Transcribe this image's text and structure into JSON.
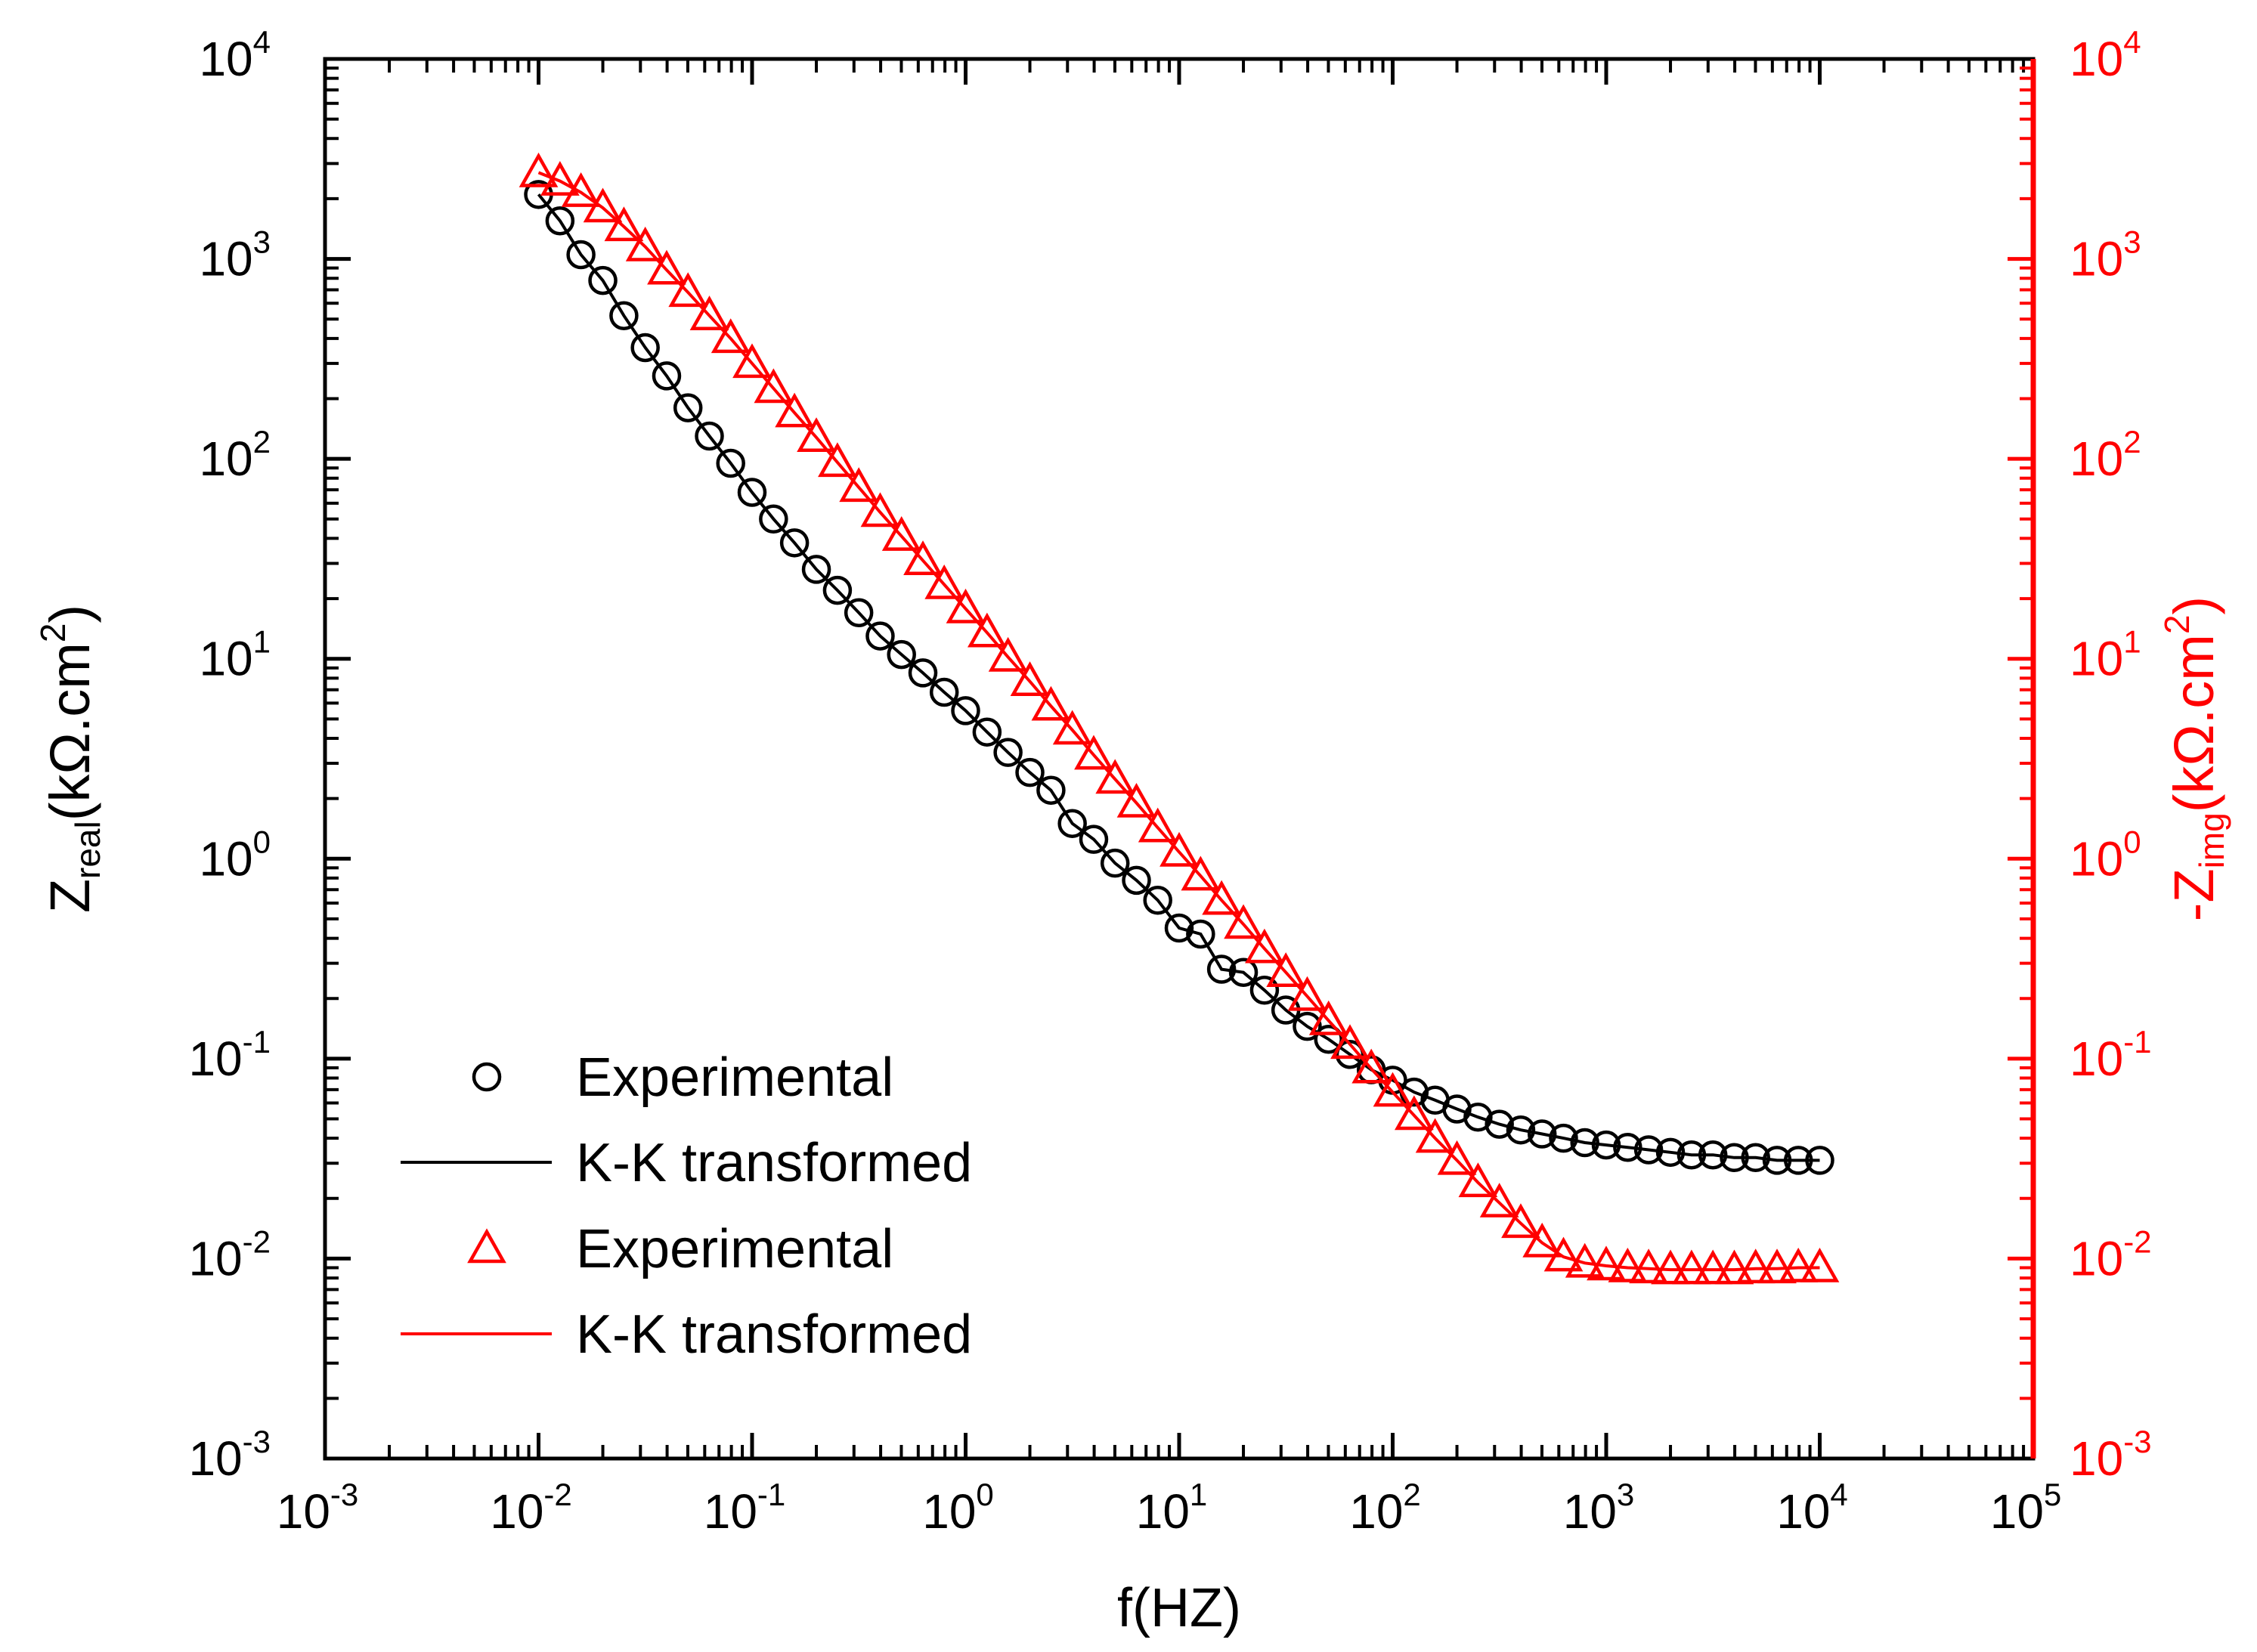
{
  "chart_data": {
    "type": "scatter",
    "x_scale": "log",
    "y_scale": "log",
    "xlim": [
      0.001,
      100000
    ],
    "ylim": [
      0.001,
      10000
    ],
    "y2lim": [
      0.001,
      10000
    ],
    "grid": false,
    "legend_position": "bottom-left",
    "x_tick_base": "10",
    "x_tick_exponents": [
      "-3",
      "-2",
      "-1",
      "0",
      "1",
      "2",
      "3",
      "4",
      "5"
    ],
    "y_tick_base": "10",
    "y_tick_exponents": [
      "-3",
      "-2",
      "-1",
      "0",
      "1",
      "2",
      "3",
      "4"
    ],
    "xlabel": "f(HZ)",
    "ylabel": {
      "main": "Z",
      "sub": "real",
      "unit": "(kΩ.cm",
      "sup": "2",
      "close": ")"
    },
    "y2label": {
      "main": "-Z",
      "sub": "img",
      "unit": "(kΩ.cm",
      "sup": "2",
      "close": ")"
    },
    "colors": {
      "real": "#000000",
      "imag": "#ff0000"
    },
    "series": [
      {
        "name": "Experimental",
        "axis": "left",
        "marker": "circle",
        "color": "#000000",
        "x": [
          0.01,
          0.0126,
          0.0158,
          0.02,
          0.0251,
          0.0316,
          0.0398,
          0.0501,
          0.0631,
          0.0794,
          0.1,
          0.126,
          0.158,
          0.2,
          0.251,
          0.316,
          0.398,
          0.501,
          0.631,
          0.794,
          1,
          1.26,
          1.58,
          2,
          2.51,
          3.16,
          3.98,
          5.01,
          6.31,
          7.94,
          10,
          12.6,
          15.8,
          20,
          25.1,
          31.6,
          39.8,
          50.1,
          63.1,
          79.4,
          100,
          126,
          158,
          200,
          251,
          316,
          398,
          501,
          631,
          794,
          1000,
          1260,
          1580,
          2000,
          2510,
          3160,
          3980,
          5010,
          6310,
          7940,
          10000
        ],
        "y": [
          2100,
          1550,
          1050,
          780,
          520,
          360,
          260,
          180,
          130,
          95,
          68,
          50,
          38,
          28,
          22,
          17,
          13,
          10.5,
          8.5,
          6.8,
          5.5,
          4.3,
          3.4,
          2.7,
          2.2,
          1.5,
          1.25,
          0.95,
          0.78,
          0.62,
          0.45,
          0.42,
          0.28,
          0.27,
          0.22,
          0.175,
          0.145,
          0.125,
          0.105,
          0.088,
          0.078,
          0.068,
          0.062,
          0.056,
          0.051,
          0.047,
          0.044,
          0.042,
          0.04,
          0.038,
          0.037,
          0.036,
          0.035,
          0.034,
          0.033,
          0.033,
          0.032,
          0.032,
          0.031,
          0.031,
          0.031
        ]
      },
      {
        "name": "K-K transformed",
        "axis": "left",
        "marker": "line",
        "color": "#000000",
        "x": [
          0.01,
          0.0126,
          0.0158,
          0.02,
          0.0251,
          0.0316,
          0.0398,
          0.0501,
          0.0631,
          0.0794,
          0.1,
          0.126,
          0.158,
          0.2,
          0.251,
          0.316,
          0.398,
          0.501,
          0.631,
          0.794,
          1,
          1.26,
          1.58,
          2,
          2.51,
          3.16,
          3.98,
          5.01,
          6.31,
          7.94,
          10,
          12.6,
          15.8,
          20,
          25.1,
          31.6,
          39.8,
          50.1,
          63.1,
          79.4,
          100,
          126,
          158,
          200,
          251,
          316,
          398,
          501,
          631,
          794,
          1000,
          1260,
          1580,
          2000,
          2510,
          3160,
          3980,
          5010,
          6310,
          7940,
          10000
        ],
        "y": [
          2100,
          1550,
          1050,
          780,
          520,
          360,
          260,
          180,
          130,
          95,
          68,
          50,
          38,
          28,
          22,
          17,
          13,
          10.5,
          8.5,
          6.8,
          5.5,
          4.3,
          3.4,
          2.7,
          2.2,
          1.5,
          1.25,
          0.95,
          0.78,
          0.62,
          0.45,
          0.42,
          0.28,
          0.27,
          0.22,
          0.175,
          0.145,
          0.125,
          0.105,
          0.088,
          0.078,
          0.068,
          0.062,
          0.056,
          0.051,
          0.047,
          0.044,
          0.042,
          0.04,
          0.038,
          0.037,
          0.036,
          0.035,
          0.034,
          0.033,
          0.033,
          0.032,
          0.032,
          0.031,
          0.031,
          0.031
        ]
      },
      {
        "name": "Experimental",
        "axis": "right",
        "marker": "triangle",
        "color": "#ff0000",
        "x": [
          0.01,
          0.0126,
          0.0158,
          0.02,
          0.0251,
          0.0316,
          0.0398,
          0.0501,
          0.0631,
          0.0794,
          0.1,
          0.126,
          0.158,
          0.2,
          0.251,
          0.316,
          0.398,
          0.501,
          0.631,
          0.794,
          1,
          1.26,
          1.58,
          2,
          2.51,
          3.16,
          3.98,
          5.01,
          6.31,
          7.94,
          10,
          12.6,
          15.8,
          20,
          25.1,
          31.6,
          39.8,
          50.1,
          63.1,
          79.4,
          100,
          126,
          158,
          200,
          251,
          316,
          398,
          501,
          631,
          794,
          1000,
          1260,
          1580,
          2000,
          2510,
          3160,
          3980,
          5010,
          6310,
          7940,
          10000
        ],
        "y": [
          2700,
          2450,
          2150,
          1800,
          1450,
          1150,
          880,
          680,
          520,
          400,
          300,
          225,
          170,
          128,
          96,
          72,
          54,
          41,
          31,
          23.5,
          17.8,
          13.5,
          10.2,
          7.7,
          5.8,
          4.4,
          3.3,
          2.5,
          1.9,
          1.43,
          1.08,
          0.82,
          0.62,
          0.47,
          0.355,
          0.27,
          0.205,
          0.155,
          0.118,
          0.089,
          0.068,
          0.052,
          0.04,
          0.031,
          0.024,
          0.019,
          0.015,
          0.012,
          0.0102,
          0.0095,
          0.0092,
          0.009,
          0.0089,
          0.0088,
          0.0088,
          0.0088,
          0.0088,
          0.0089,
          0.0089,
          0.009,
          0.009
        ]
      },
      {
        "name": "K-K transformed",
        "axis": "right",
        "marker": "line",
        "color": "#ff0000",
        "x": [
          0.01,
          0.0126,
          0.0158,
          0.02,
          0.0251,
          0.0316,
          0.0398,
          0.0501,
          0.0631,
          0.0794,
          0.1,
          0.126,
          0.158,
          0.2,
          0.251,
          0.316,
          0.398,
          0.501,
          0.631,
          0.794,
          1,
          1.26,
          1.58,
          2,
          2.51,
          3.16,
          3.98,
          5.01,
          6.31,
          7.94,
          10,
          12.6,
          15.8,
          20,
          25.1,
          31.6,
          39.8,
          50.1,
          63.1,
          79.4,
          100,
          126,
          158,
          200,
          251,
          316,
          398,
          501,
          631,
          794,
          1000,
          1260,
          1580,
          2000,
          2510,
          3160,
          3980,
          5010,
          6310,
          7940,
          10000
        ],
        "y": [
          2700,
          2450,
          2150,
          1800,
          1450,
          1150,
          880,
          680,
          520,
          400,
          300,
          225,
          170,
          128,
          96,
          72,
          54,
          41,
          31,
          23.5,
          17.8,
          13.5,
          10.2,
          7.7,
          5.8,
          4.4,
          3.3,
          2.5,
          1.9,
          1.43,
          1.08,
          0.82,
          0.62,
          0.47,
          0.355,
          0.27,
          0.205,
          0.155,
          0.118,
          0.089,
          0.068,
          0.052,
          0.04,
          0.031,
          0.024,
          0.019,
          0.015,
          0.012,
          0.0102,
          0.0095,
          0.0092,
          0.009,
          0.0089,
          0.0088,
          0.0088,
          0.0088,
          0.0088,
          0.0089,
          0.0089,
          0.009,
          0.009
        ]
      }
    ]
  }
}
